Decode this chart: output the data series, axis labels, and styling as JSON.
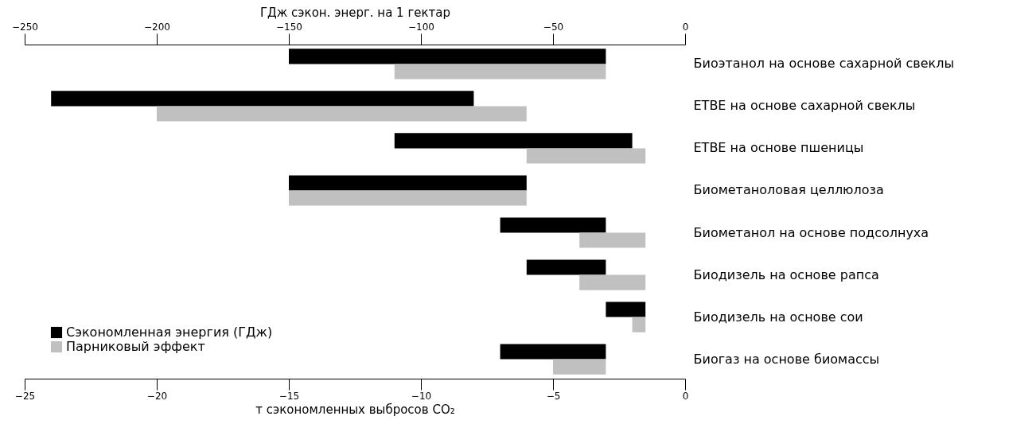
{
  "chart_data": {
    "type": "bar",
    "orientation": "horizontal",
    "x2label": "ГДж сэкон. энерг. на 1 гектар",
    "xlabel": "т сэкономленных выбросов CO₂",
    "categories": [
      "Биоэтанол на основе сахарной свеклы",
      "ETBE на основе сахарной свеклы",
      "ETBE на основе пшеницы",
      "Биометаноловая целлюлоза",
      "Биометанол на основе подсолнуха",
      "Биодизель на основе рапса",
      "Биодизель на основе сои",
      "Биогаз на основе биомассы"
    ],
    "series": [
      {
        "name": "Сэкономленная энергия (ГДж)",
        "color": "#000000",
        "axis": "x2",
        "base": [
          -150,
          -240,
          -110,
          -150,
          -70,
          -60,
          -30,
          -70
        ],
        "values": [
          120,
          160,
          90,
          90,
          40,
          30,
          15,
          40
        ]
      },
      {
        "name": "Парниковый эффект",
        "color": "#c0c0c0",
        "base": [
          -11,
          -20,
          -6,
          -15,
          -4,
          -4,
          -2,
          -5
        ],
        "values": [
          8,
          14,
          4.5,
          9,
          2.5,
          2.5,
          0.5,
          2
        ]
      }
    ],
    "xlim": [
      -25,
      0
    ],
    "xticks": [
      -25,
      -20,
      -15,
      -10,
      -5,
      0
    ],
    "x2lim": [
      -250,
      0
    ],
    "x2ticks": [
      -250,
      -200,
      -150,
      -100,
      -50,
      0
    ],
    "legend": "bottom left"
  }
}
